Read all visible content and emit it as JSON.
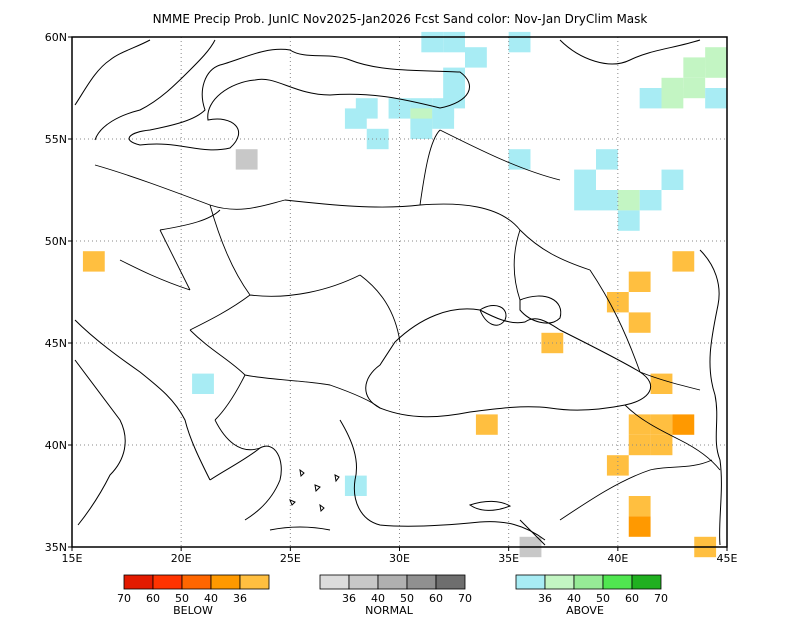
{
  "title": "NMME Precip Prob. JunIC  Nov2025-Jan2026 Fcst  Sand color: Nov-Jan DryClim Mask",
  "map": {
    "lon_range": [
      15,
      45
    ],
    "lat_range": [
      35,
      60
    ],
    "x_ticks": [
      "15E",
      "20E",
      "25E",
      "30E",
      "35E",
      "40E",
      "45E"
    ],
    "y_ticks": [
      "60N",
      "55N",
      "50N",
      "45N",
      "40N",
      "35N"
    ],
    "grid": true
  },
  "colors": {
    "below": [
      "#e31a00",
      "#ff3300",
      "#ff6600",
      "#ff9900",
      "#ffbf40"
    ],
    "normal": [
      "#dcdcdc",
      "#c8c8c8",
      "#b0b0b0",
      "#909090",
      "#6e6e6e"
    ],
    "above": [
      "#a8ecf4",
      "#c3f5c3",
      "#96eb96",
      "#50e650",
      "#20b020"
    ],
    "sand": "#ffbf40",
    "grid": "#888888"
  },
  "legend": {
    "below": {
      "label": "BELOW",
      "ticks": [
        "70",
        "60",
        "50",
        "40",
        "36"
      ]
    },
    "normal": {
      "label": "NORMAL",
      "ticks": [
        "36",
        "40",
        "50",
        "60",
        "70"
      ]
    },
    "above": {
      "label": "ABOVE",
      "ticks": [
        "36",
        "40",
        "50",
        "60",
        "70"
      ]
    }
  },
  "cells": [
    {
      "lon": 31.5,
      "lat": 59.75,
      "cat": "above",
      "level": 0
    },
    {
      "lon": 32.5,
      "lat": 59.75,
      "cat": "above",
      "level": 0
    },
    {
      "lon": 35.5,
      "lat": 59.75,
      "cat": "above",
      "level": 0
    },
    {
      "lon": 33.5,
      "lat": 59.0,
      "cat": "above",
      "level": 0
    },
    {
      "lon": 32.5,
      "lat": 58.0,
      "cat": "above",
      "level": 0
    },
    {
      "lon": 43.5,
      "lat": 58.5,
      "cat": "above",
      "level": 1
    },
    {
      "lon": 44.5,
      "lat": 58.5,
      "cat": "above",
      "level": 1
    },
    {
      "lon": 44.5,
      "lat": 59.0,
      "cat": "above",
      "level": 1
    },
    {
      "lon": 42.5,
      "lat": 57.5,
      "cat": "above",
      "level": 1
    },
    {
      "lon": 43.5,
      "lat": 57.5,
      "cat": "above",
      "level": 1
    },
    {
      "lon": 41.5,
      "lat": 57.0,
      "cat": "above",
      "level": 0
    },
    {
      "lon": 42.5,
      "lat": 57.0,
      "cat": "above",
      "level": 1
    },
    {
      "lon": 44.5,
      "lat": 57.0,
      "cat": "above",
      "level": 0
    },
    {
      "lon": 28.5,
      "lat": 56.5,
      "cat": "above",
      "level": 0
    },
    {
      "lon": 30.0,
      "lat": 56.5,
      "cat": "above",
      "level": 0
    },
    {
      "lon": 31.0,
      "lat": 56.5,
      "cat": "above",
      "level": 0
    },
    {
      "lon": 32.0,
      "lat": 56.5,
      "cat": "above",
      "level": 0
    },
    {
      "lon": 32.5,
      "lat": 57.0,
      "cat": "above",
      "level": 0
    },
    {
      "lon": 28.0,
      "lat": 56.0,
      "cat": "above",
      "level": 0
    },
    {
      "lon": 31.0,
      "lat": 56.0,
      "cat": "above",
      "level": 1
    },
    {
      "lon": 32.0,
      "lat": 56.0,
      "cat": "above",
      "level": 0
    },
    {
      "lon": 29.0,
      "lat": 55.0,
      "cat": "above",
      "level": 0
    },
    {
      "lon": 31.0,
      "lat": 55.5,
      "cat": "above",
      "level": 0
    },
    {
      "lon": 35.5,
      "lat": 54.0,
      "cat": "above",
      "level": 0
    },
    {
      "lon": 39.5,
      "lat": 54.0,
      "cat": "above",
      "level": 0
    },
    {
      "lon": 38.5,
      "lat": 53.0,
      "cat": "above",
      "level": 0
    },
    {
      "lon": 42.5,
      "lat": 53.0,
      "cat": "above",
      "level": 0
    },
    {
      "lon": 38.5,
      "lat": 52.0,
      "cat": "above",
      "level": 0
    },
    {
      "lon": 39.5,
      "lat": 52.0,
      "cat": "above",
      "level": 0
    },
    {
      "lon": 40.5,
      "lat": 52.0,
      "cat": "above",
      "level": 1
    },
    {
      "lon": 41.5,
      "lat": 52.0,
      "cat": "above",
      "level": 0
    },
    {
      "lon": 40.5,
      "lat": 51.0,
      "cat": "above",
      "level": 0
    },
    {
      "lon": 21.0,
      "lat": 43.0,
      "cat": "above",
      "level": 0
    },
    {
      "lon": 28.0,
      "lat": 38.0,
      "cat": "above",
      "level": 0
    },
    {
      "lon": 23.0,
      "lat": 54.0,
      "cat": "normal",
      "level": 1
    },
    {
      "lon": 36.0,
      "lat": 35.0,
      "cat": "normal",
      "level": 1
    },
    {
      "lon": 16.0,
      "lat": 49.0,
      "cat": "below",
      "level": 4
    },
    {
      "lon": 43.0,
      "lat": 49.0,
      "cat": "below",
      "level": 4
    },
    {
      "lon": 41.0,
      "lat": 48.0,
      "cat": "below",
      "level": 4
    },
    {
      "lon": 40.0,
      "lat": 47.0,
      "cat": "below",
      "level": 4
    },
    {
      "lon": 41.0,
      "lat": 46.0,
      "cat": "below",
      "level": 4
    },
    {
      "lon": 37.0,
      "lat": 45.0,
      "cat": "below",
      "level": 4
    },
    {
      "lon": 42.0,
      "lat": 43.0,
      "cat": "below",
      "level": 4
    },
    {
      "lon": 34.0,
      "lat": 41.0,
      "cat": "below",
      "level": 4
    },
    {
      "lon": 41.0,
      "lat": 41.0,
      "cat": "below",
      "level": 4
    },
    {
      "lon": 42.0,
      "lat": 41.0,
      "cat": "below",
      "level": 4
    },
    {
      "lon": 43.0,
      "lat": 41.0,
      "cat": "below",
      "level": 3
    },
    {
      "lon": 41.0,
      "lat": 40.0,
      "cat": "below",
      "level": 4
    },
    {
      "lon": 42.0,
      "lat": 40.0,
      "cat": "below",
      "level": 4
    },
    {
      "lon": 40.0,
      "lat": 39.0,
      "cat": "below",
      "level": 4
    },
    {
      "lon": 41.0,
      "lat": 37.0,
      "cat": "below",
      "level": 4
    },
    {
      "lon": 41.0,
      "lat": 36.0,
      "cat": "below",
      "level": 3
    },
    {
      "lon": 44.0,
      "lat": 35.0,
      "cat": "below",
      "level": 4
    }
  ]
}
